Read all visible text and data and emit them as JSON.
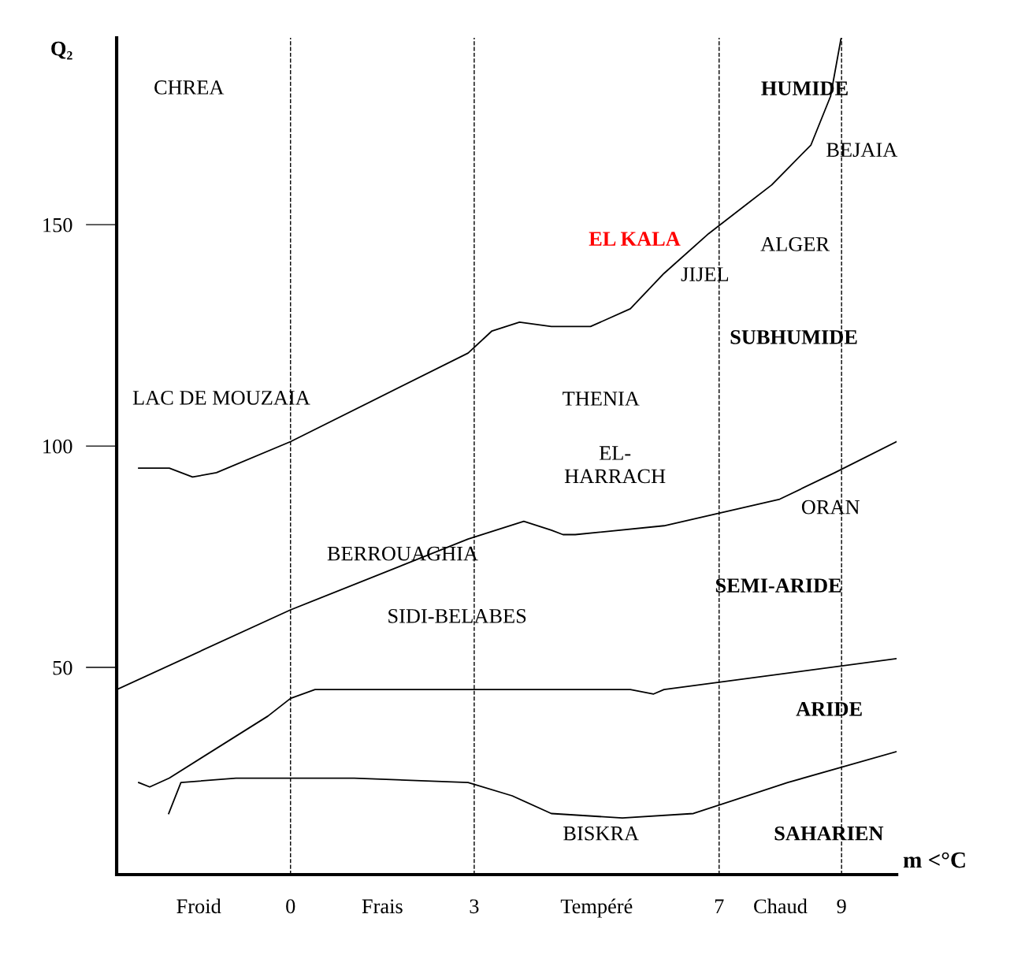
{
  "chart_data": {
    "type": "line",
    "ylabel": "Q₂",
    "xlabel": "m <°C",
    "xlim": [
      -2.84,
      9.9
    ],
    "ylim": [
      3.2,
      192.2
    ],
    "xticks": [
      {
        "value": -1.5,
        "label": "Froid"
      },
      0,
      {
        "value": 1.5,
        "label": "Frais"
      },
      3,
      {
        "value": 5,
        "label": "Tempéré"
      },
      7,
      {
        "value": 8,
        "label": "Chaud"
      },
      9
    ],
    "yticks": [
      50,
      100,
      150
    ],
    "grid": false,
    "marker": "none",
    "line_style": "solid",
    "series": [
      {
        "color": "#000000",
        "x": [
          -2.48,
          -1.98,
          -1.6,
          -1.21,
          0,
          2.9,
          3.29,
          3.74,
          4.26,
          4.9,
          5.55,
          6.1,
          6.83,
          7.86,
          8.5,
          8.82,
          8.99
        ],
        "values": [
          95,
          95,
          93,
          94,
          101,
          121,
          126,
          128,
          127,
          127,
          131,
          139,
          148,
          159,
          168,
          179,
          192
        ]
      },
      {
        "color": "#000000",
        "x": [
          -2.84,
          0,
          2.9,
          3.81,
          4.26,
          4.45,
          4.65,
          6.1,
          7.99,
          8.89,
          9.9
        ],
        "values": [
          45,
          63,
          79,
          83,
          81,
          80,
          80,
          82,
          88,
          94,
          101
        ]
      },
      {
        "color": "#000000",
        "x": [
          -2.48,
          -2.3,
          -1.98,
          -0.37,
          0,
          0.4,
          1.3,
          2.9,
          5.55,
          5.93,
          6.1,
          9.9
        ],
        "values": [
          24,
          23,
          25,
          39,
          43,
          45,
          45,
          45,
          45,
          44,
          45,
          52
        ]
      },
      {
        "color": "#000000",
        "x": [
          -1.99,
          -1.79,
          -0.89,
          1.04,
          2.9,
          3.62,
          4.26,
          5.42,
          6.58,
          8.12,
          9.9
        ],
        "values": [
          17,
          24,
          25,
          25,
          24,
          21,
          17,
          16,
          17,
          24,
          31
        ]
      }
    ],
    "ref_lines": [
      {
        "axis": "x",
        "value": 0,
        "label": null,
        "color": "#000000",
        "line_style": "dashed"
      },
      {
        "axis": "x",
        "value": 3,
        "label": null,
        "color": "#000000",
        "line_style": "dashed"
      },
      {
        "axis": "x",
        "value": 7,
        "label": null,
        "color": "#000000",
        "line_style": "dashed"
      },
      {
        "axis": "x",
        "value": 9,
        "label": null,
        "color": "#000000",
        "line_style": "dashed"
      }
    ],
    "annotations": [
      "CHREA",
      "HUMIDE",
      "BEJAIA",
      "EL KALA",
      "ALGER",
      "JIJEL",
      "SUBHUMIDE",
      "LAC DE MOUZAIA",
      "THENIA",
      "EL-\nHARRACH",
      "ORAN",
      "BERROUAGHIA",
      "SEMI-ARIDE",
      "SIDI-BELABES",
      "ARIDE",
      "BISKRA",
      "SAHARIEN"
    ]
  }
}
